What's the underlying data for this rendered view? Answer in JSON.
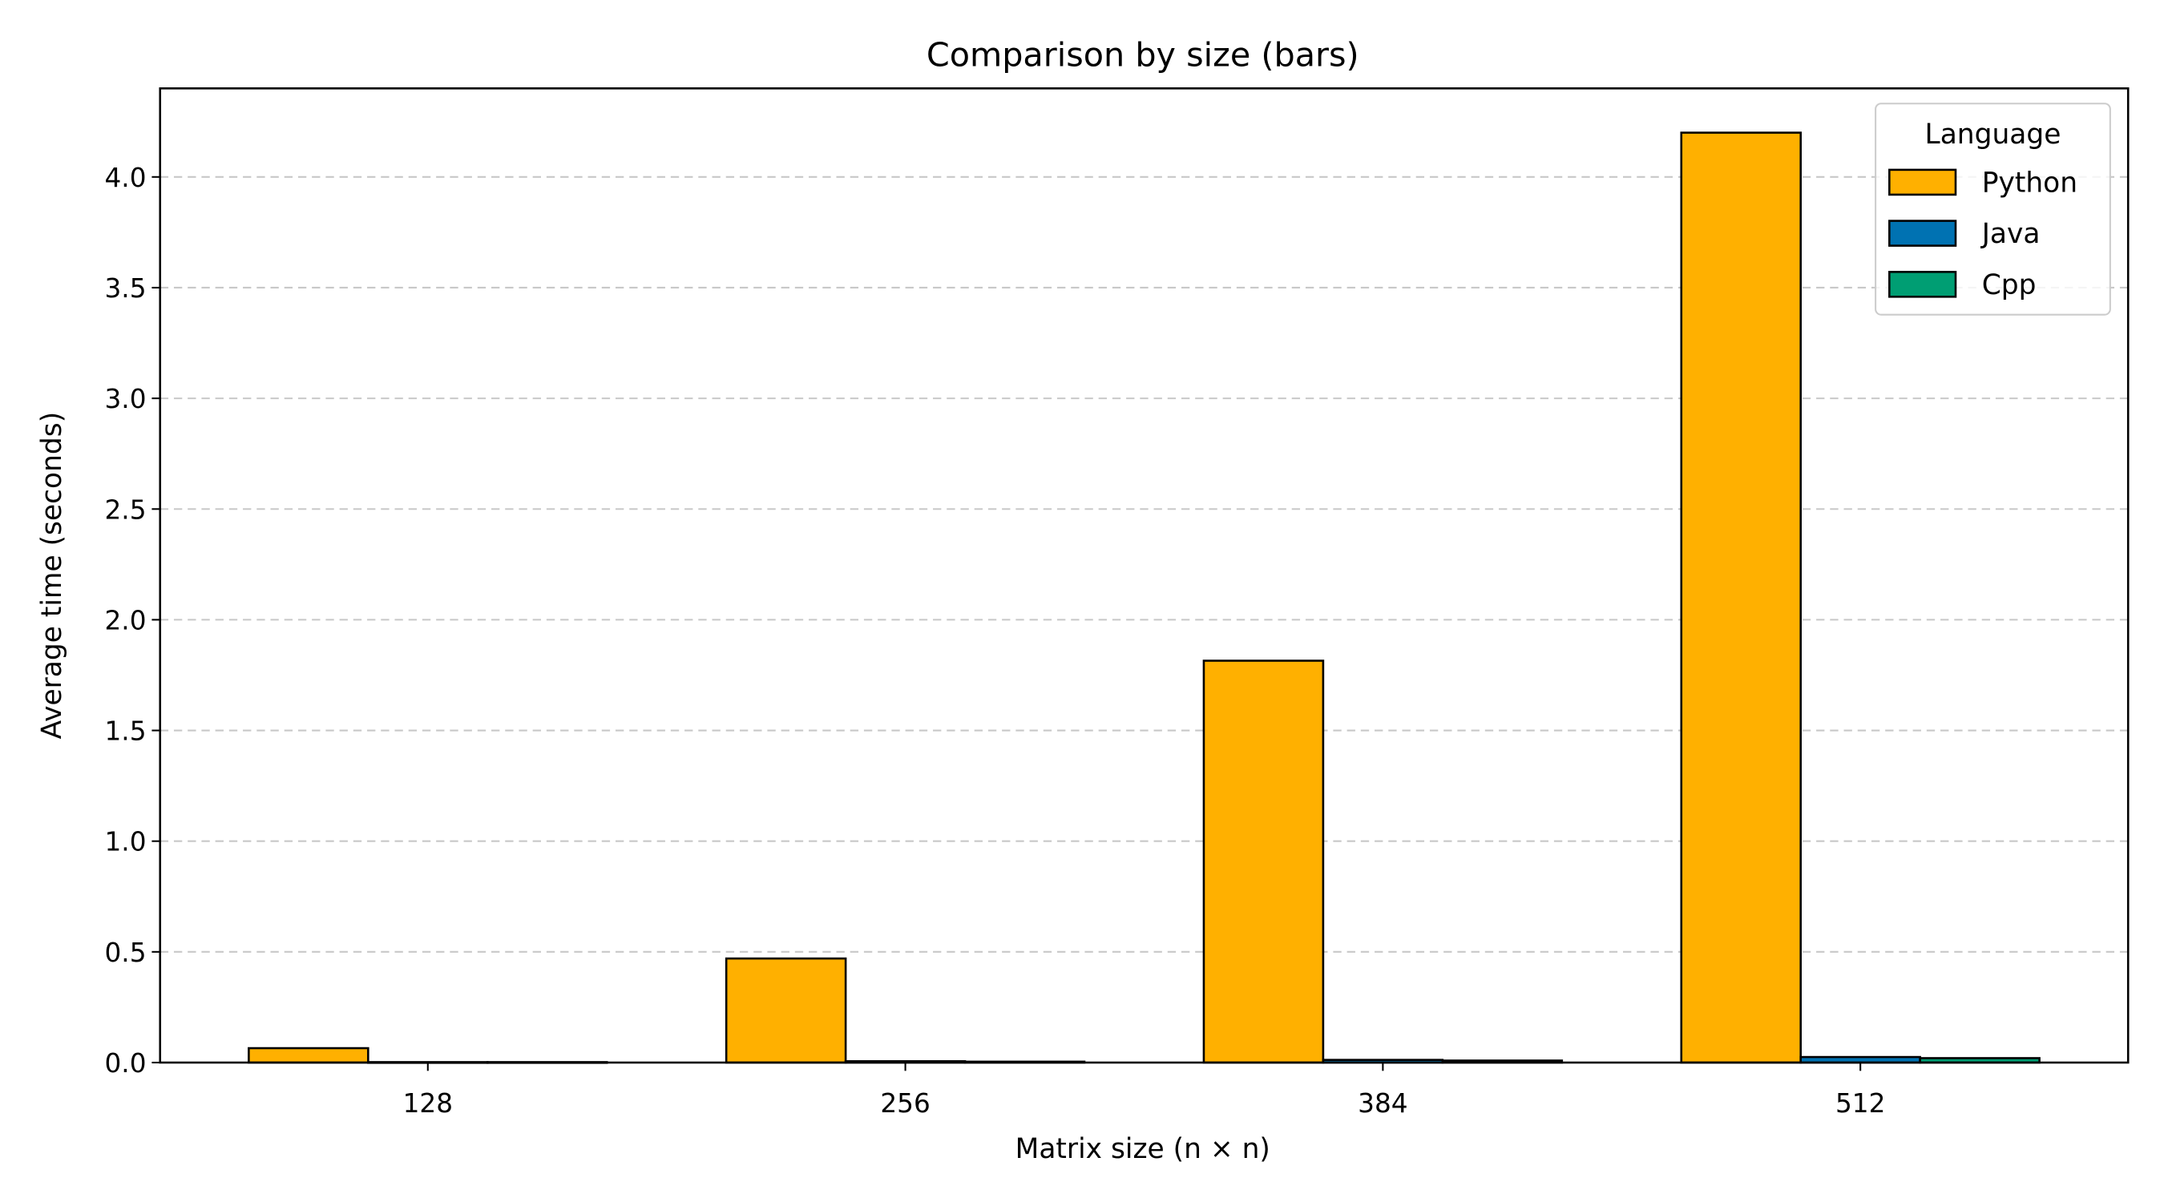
{
  "chart_data": {
    "type": "bar",
    "title": "Comparison by size (bars)",
    "xlabel": "Matrix size (n × n)",
    "ylabel": "Average time (seconds)",
    "categories": [
      "128",
      "256",
      "384",
      "512"
    ],
    "series": [
      {
        "name": "Python",
        "values": [
          0.065,
          0.47,
          1.815,
          4.2
        ],
        "color": "#FFB000"
      },
      {
        "name": "Java",
        "values": [
          0.002,
          0.006,
          0.012,
          0.025
        ],
        "color": "#0072B2"
      },
      {
        "name": "Cpp",
        "values": [
          0.002,
          0.004,
          0.009,
          0.02
        ],
        "color": "#009E73"
      }
    ],
    "ylim": [
      0,
      4.4
    ],
    "yticks": [
      0.0,
      0.5,
      1.0,
      1.5,
      2.0,
      2.5,
      3.0,
      3.5,
      4.0
    ],
    "ytick_labels": [
      "0.0",
      "0.5",
      "1.0",
      "1.5",
      "2.0",
      "2.5",
      "3.0",
      "3.5",
      "4.0"
    ],
    "grid": "y-dashed",
    "legend": {
      "title": "Language",
      "placement": "top-right"
    }
  }
}
